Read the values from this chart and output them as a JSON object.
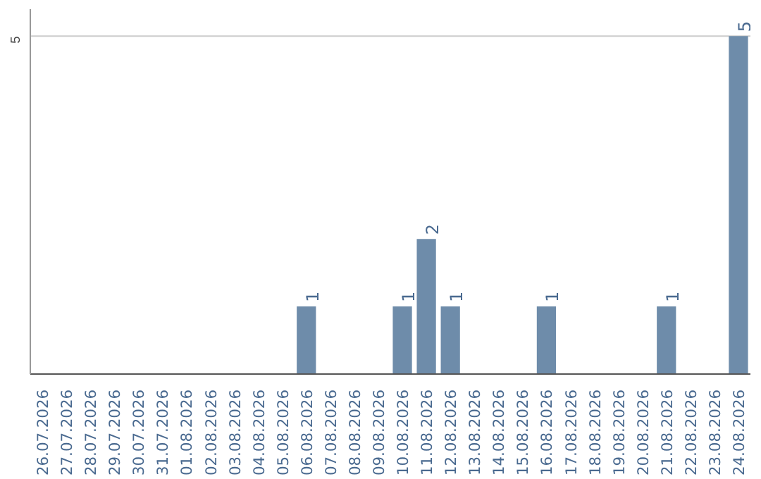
{
  "chart_data": {
    "type": "bar",
    "categories": [
      "26.07.2026",
      "27.07.2026",
      "28.07.2026",
      "29.07.2026",
      "30.07.2026",
      "31.07.2026",
      "01.08.2026",
      "02.08.2026",
      "03.08.2026",
      "04.08.2026",
      "05.08.2026",
      "06.08.2026",
      "07.08.2026",
      "08.08.2026",
      "09.08.2026",
      "10.08.2026",
      "11.08.2026",
      "12.08.2026",
      "13.08.2026",
      "14.08.2026",
      "15.08.2026",
      "16.08.2026",
      "17.08.2026",
      "18.08.2026",
      "19.08.2026",
      "20.08.2026",
      "21.08.2026",
      "22.08.2026",
      "23.08.2026",
      "24.08.2026"
    ],
    "values": [
      0,
      0,
      0,
      0,
      0,
      0,
      0,
      0,
      0,
      0,
      0,
      1,
      0,
      0,
      0,
      1,
      2,
      1,
      0,
      0,
      0,
      1,
      0,
      0,
      0,
      0,
      1,
      0,
      0,
      5
    ],
    "value_labels": [
      null,
      null,
      null,
      null,
      null,
      null,
      null,
      null,
      null,
      null,
      null,
      "1",
      null,
      null,
      null,
      "1",
      "2",
      "1",
      null,
      null,
      null,
      "1",
      null,
      null,
      null,
      null,
      "1",
      null,
      null,
      "5"
    ],
    "color": "#6e8caa",
    "ylim": [
      0,
      5.4
    ],
    "yticks": [
      5
    ],
    "grid": "y"
  }
}
